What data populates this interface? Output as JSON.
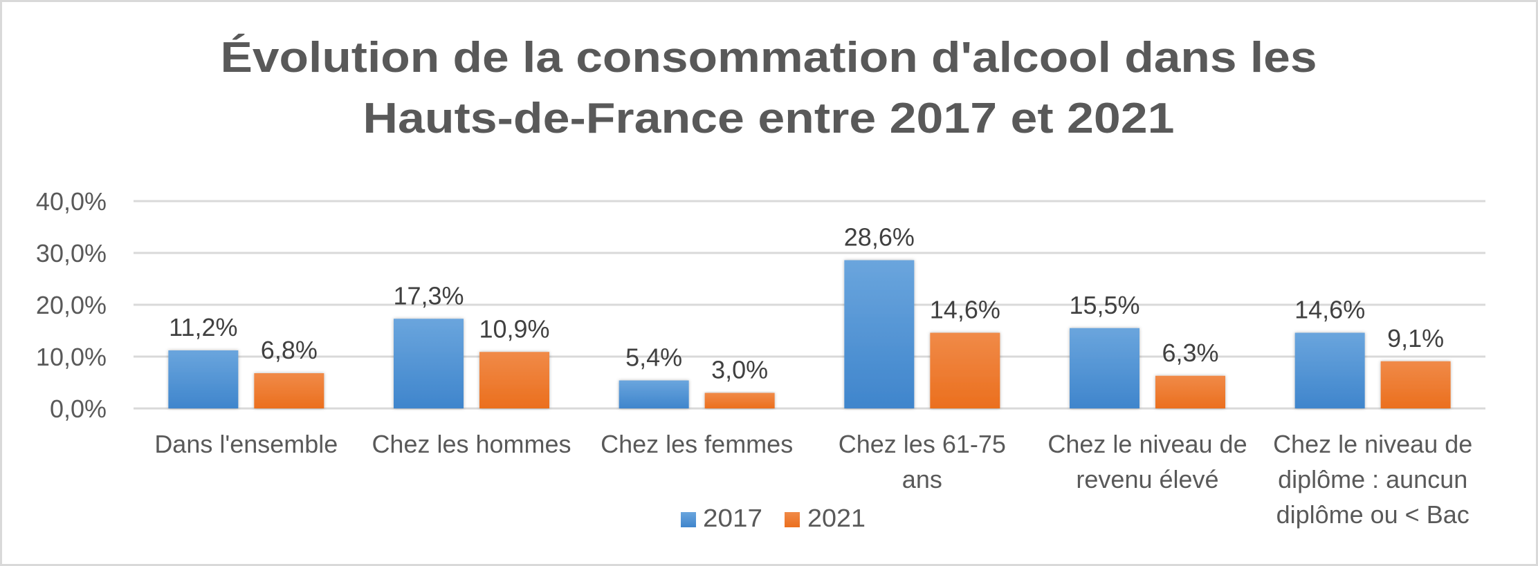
{
  "chart_data": {
    "type": "bar",
    "title": "Évolution de la consommation d'alcool dans les Hauts-de-France entre 2017 et 2021",
    "title_lines": [
      "Évolution de la consommation d'alcool dans les",
      "Hauts-de-France entre 2017 et 2021"
    ],
    "xlabel": "",
    "ylabel": "",
    "ylim": [
      0,
      40
    ],
    "yticks": [
      0,
      10,
      20,
      30,
      40
    ],
    "ytick_labels": [
      "0,0%",
      "10,0%",
      "20,0%",
      "30,0%",
      "40,0%"
    ],
    "grid": true,
    "legend_position": "bottom",
    "categories": [
      "Dans l'ensemble",
      "Chez les hommes",
      "Chez les femmes",
      "Chez les 61-75 ans",
      "Chez le niveau de revenu élevé",
      "Chez le niveau de diplôme : auncun diplôme ou < Bac"
    ],
    "category_label_lines": [
      [
        "Dans l'ensemble"
      ],
      [
        "Chez les hommes"
      ],
      [
        "Chez les femmes"
      ],
      [
        "Chez les 61-75",
        "ans"
      ],
      [
        "Chez le niveau de",
        "revenu élevé"
      ],
      [
        "Chez le niveau de",
        "diplôme : auncun",
        "diplôme ou < Bac"
      ]
    ],
    "series": [
      {
        "name": "2017",
        "color": "#4a8fd4",
        "values": [
          11.2,
          17.3,
          5.4,
          28.6,
          15.5,
          14.6
        ],
        "labels": [
          "11,2%",
          "17,3%",
          "5,4%",
          "28,6%",
          "15,5%",
          "14,6%"
        ]
      },
      {
        "name": "2021",
        "color": "#ee7a2e",
        "values": [
          6.8,
          10.9,
          3.0,
          14.6,
          6.3,
          9.1
        ],
        "labels": [
          "6,8%",
          "10,9%",
          "3,0%",
          "14,6%",
          "6,3%",
          "9,1%"
        ]
      }
    ]
  }
}
